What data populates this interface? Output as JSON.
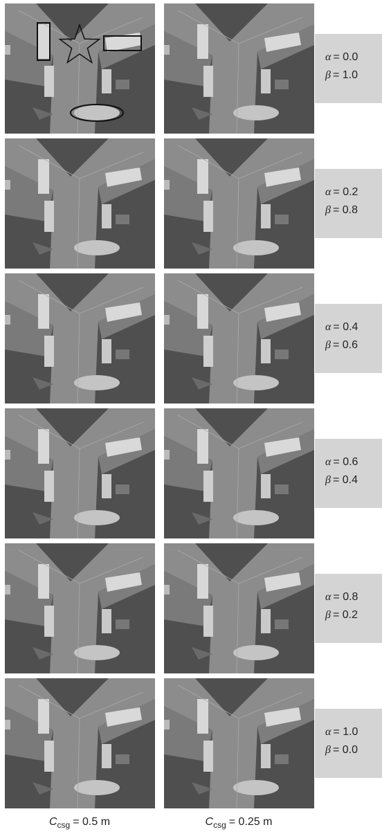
{
  "symbols": {
    "alpha": "α",
    "beta": "β"
  },
  "rows": [
    {
      "alpha": "= 0.0",
      "beta": "= 1.0"
    },
    {
      "alpha": "= 0.2",
      "beta": "= 0.8"
    },
    {
      "alpha": "= 0.4",
      "beta": "= 0.6"
    },
    {
      "alpha": "= 0.6",
      "beta": "= 0.4"
    },
    {
      "alpha": "= 0.8",
      "beta": "= 0.2"
    },
    {
      "alpha": "= 1.0",
      "beta": "= 0.0"
    }
  ],
  "columns": [
    {
      "symbol": "C",
      "subscript": "csg",
      "value": "= 0.5 m"
    },
    {
      "symbol": "C",
      "subscript": "csg",
      "value": "= 0.25 m"
    }
  ]
}
